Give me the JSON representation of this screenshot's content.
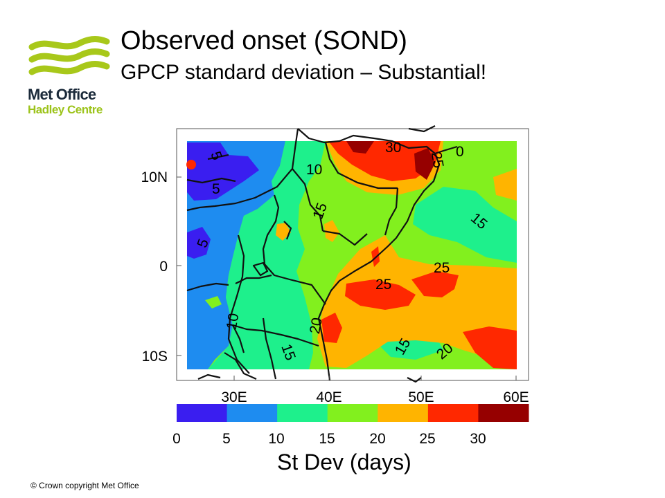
{
  "header": {
    "title": "Observed onset (SOND)",
    "subtitle": "GPCP standard deviation – Substantial!"
  },
  "logo": {
    "line1": "Met Office",
    "line2": "Hadley Centre",
    "brand_color": "#a8c81a",
    "text_color": "#1b2a3a",
    "icon": "wave-logo-icon"
  },
  "map": {
    "lat_labels": [
      "10N",
      "0",
      "10S"
    ],
    "lon_labels": [
      "30E",
      "40E",
      "50E",
      "60E"
    ],
    "contour_labels": [
      "5",
      "5",
      "5",
      "10",
      "15",
      "30",
      "25",
      "0",
      "15",
      "25",
      "25",
      "20",
      "15",
      "15",
      "20",
      "10"
    ]
  },
  "colorbar": {
    "ticks": [
      "0",
      "5",
      "10",
      "15",
      "20",
      "25",
      "30"
    ],
    "colors": [
      "#3a1ef0",
      "#1e8cf0",
      "#1ef08c",
      "#82f01e",
      "#ffb400",
      "#ff2800",
      "#960000"
    ],
    "label": "St Dev (days)"
  },
  "footer": {
    "copyright": "© Crown copyright   Met Office"
  }
}
